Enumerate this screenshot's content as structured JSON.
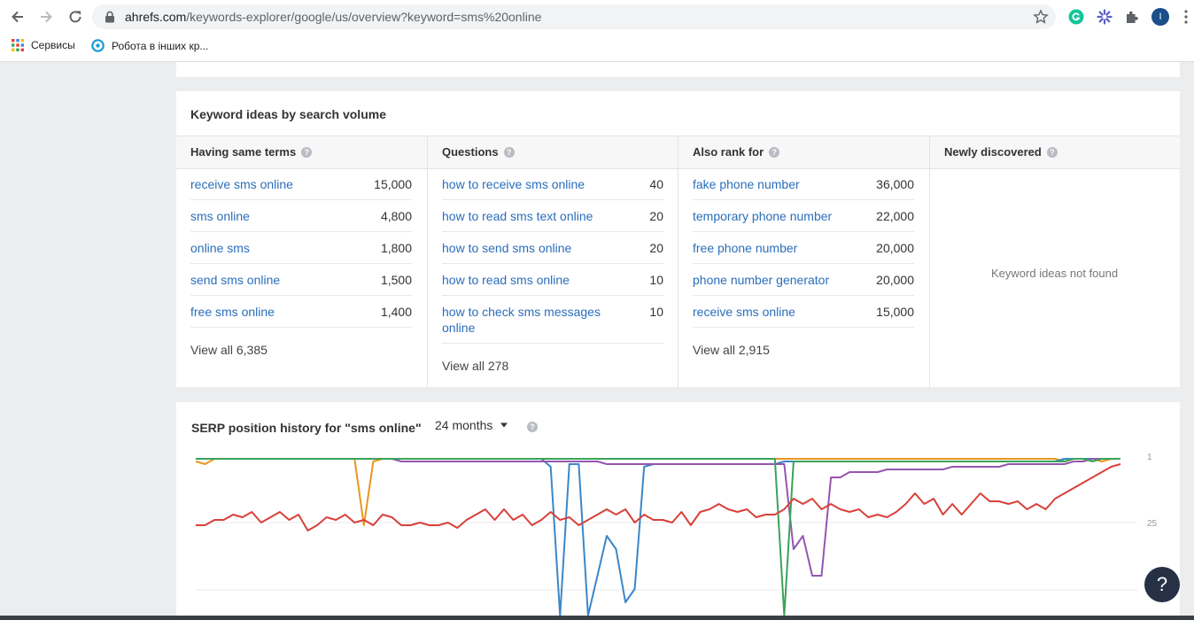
{
  "browser": {
    "url_host": "ahrefs.com",
    "url_path": "/keywords-explorer/google/us/overview?keyword=sms%20online",
    "profile_initial": "I",
    "bookmarks": [
      {
        "label": "Сервисы",
        "icon": "apps-grid-icon"
      },
      {
        "label": "Робота в інших кр...",
        "icon": "target-icon"
      }
    ]
  },
  "ideas": {
    "title": "Keyword ideas by search volume",
    "columns": [
      {
        "header": "Having same terms",
        "rows": [
          {
            "keyword": "receive sms online",
            "volume": "15,000"
          },
          {
            "keyword": "sms online",
            "volume": "4,800"
          },
          {
            "keyword": "online sms",
            "volume": "1,800"
          },
          {
            "keyword": "send sms online",
            "volume": "1,500"
          },
          {
            "keyword": "free sms online",
            "volume": "1,400"
          }
        ],
        "view_all": "View all 6,385"
      },
      {
        "header": "Questions",
        "rows": [
          {
            "keyword": "how to receive sms online",
            "volume": "40"
          },
          {
            "keyword": "how to read sms text online",
            "volume": "20"
          },
          {
            "keyword": "how to send sms online",
            "volume": "20"
          },
          {
            "keyword": "how to read sms online",
            "volume": "10"
          },
          {
            "keyword": "how to check sms messages online",
            "volume": "10"
          }
        ],
        "view_all": "View all 278"
      },
      {
        "header": "Also rank for",
        "rows": [
          {
            "keyword": "fake phone number",
            "volume": "36,000"
          },
          {
            "keyword": "temporary phone number",
            "volume": "22,000"
          },
          {
            "keyword": "free phone number",
            "volume": "20,000"
          },
          {
            "keyword": "phone number generator",
            "volume": "20,000"
          },
          {
            "keyword": "receive sms online",
            "volume": "15,000"
          }
        ],
        "view_all": "View all 2,915"
      },
      {
        "header": "Newly discovered",
        "rows": [],
        "empty_text": "Keyword ideas not found"
      }
    ]
  },
  "serp": {
    "title": "SERP position history for \"sms online\"",
    "period": "24 months",
    "help_fab": "?"
  },
  "chart_data": {
    "type": "line",
    "title": "SERP position history for \"sms online\"",
    "y_axis": {
      "ticks": [
        "1",
        "25"
      ],
      "inverted": true,
      "range_visible": [
        1,
        50
      ]
    },
    "x_range_points": 100,
    "series": [
      {
        "name": "orange",
        "color": "#e8961e",
        "values": [
          2,
          3,
          1,
          1,
          1,
          1,
          1,
          1,
          1,
          1,
          1,
          1,
          1,
          1,
          1,
          1,
          1,
          1,
          26,
          2,
          1,
          1,
          1,
          1,
          1,
          1,
          1,
          1,
          1,
          1,
          1,
          1,
          1,
          1,
          1,
          1,
          1,
          1,
          1,
          1,
          1,
          1,
          1,
          1,
          1,
          1,
          1,
          1,
          1,
          1,
          1,
          1,
          1,
          1,
          1,
          1,
          1,
          1,
          1,
          1,
          1,
          1,
          1,
          1,
          1,
          1,
          1,
          1,
          1,
          1,
          1,
          1,
          1,
          1,
          1,
          1,
          1,
          1,
          1,
          1,
          1,
          1,
          1,
          1,
          1,
          1,
          1,
          1,
          1,
          1,
          1,
          1,
          1,
          2,
          1,
          1,
          1,
          2,
          1,
          1
        ]
      },
      {
        "name": "blue",
        "color": "#3a87c8",
        "values": [
          1,
          1,
          1,
          1,
          1,
          1,
          1,
          1,
          1,
          1,
          1,
          1,
          1,
          1,
          1,
          1,
          1,
          1,
          1,
          1,
          1,
          1,
          1,
          1,
          1,
          1,
          1,
          1,
          1,
          1,
          1,
          1,
          1,
          1,
          1,
          1,
          1,
          1,
          4,
          60,
          3,
          3,
          60,
          45,
          30,
          35,
          55,
          50,
          4,
          3,
          3,
          3,
          3,
          3,
          3,
          3,
          3,
          3,
          3,
          3,
          3,
          3,
          3,
          2,
          2,
          2,
          2,
          2,
          2,
          2,
          2,
          2,
          2,
          2,
          2,
          2,
          2,
          2,
          2,
          2,
          2,
          2,
          2,
          2,
          2,
          2,
          2,
          2,
          2,
          2,
          2,
          2,
          2,
          1,
          1,
          1,
          1,
          1,
          1,
          1
        ]
      },
      {
        "name": "purple",
        "color": "#9456b0",
        "values": [
          1,
          1,
          1,
          1,
          1,
          1,
          1,
          1,
          1,
          1,
          1,
          1,
          1,
          1,
          1,
          1,
          1,
          1,
          1,
          1,
          1,
          1,
          2,
          2,
          2,
          2,
          2,
          2,
          2,
          2,
          2,
          2,
          2,
          2,
          2,
          2,
          2,
          2,
          2,
          2,
          2,
          2,
          2,
          2,
          3,
          3,
          3,
          3,
          3,
          3,
          3,
          3,
          3,
          3,
          3,
          3,
          3,
          3,
          3,
          3,
          3,
          3,
          3,
          3,
          35,
          30,
          45,
          45,
          8,
          8,
          6,
          6,
          6,
          6,
          5,
          5,
          5,
          5,
          5,
          5,
          5,
          4,
          4,
          4,
          4,
          4,
          4,
          3,
          3,
          3,
          3,
          3,
          3,
          3,
          2,
          2,
          1,
          1,
          1,
          1
        ]
      },
      {
        "name": "green",
        "color": "#3aa35a",
        "values": [
          1,
          1,
          1,
          1,
          1,
          1,
          1,
          1,
          1,
          1,
          1,
          1,
          1,
          1,
          1,
          1,
          1,
          1,
          1,
          1,
          1,
          1,
          1,
          1,
          1,
          1,
          1,
          1,
          1,
          1,
          1,
          1,
          1,
          1,
          1,
          1,
          1,
          1,
          1,
          1,
          1,
          1,
          1,
          1,
          1,
          1,
          1,
          1,
          1,
          1,
          1,
          1,
          1,
          1,
          1,
          1,
          1,
          1,
          1,
          1,
          1,
          1,
          1,
          60,
          2,
          2,
          2,
          2,
          2,
          2,
          2,
          2,
          2,
          2,
          2,
          2,
          2,
          2,
          2,
          2,
          2,
          2,
          2,
          2,
          2,
          2,
          2,
          2,
          2,
          2,
          2,
          2,
          2,
          2,
          1,
          1,
          2,
          1,
          1,
          1
        ]
      },
      {
        "name": "red",
        "color": "#d9403a",
        "values": [
          26,
          26,
          24,
          24,
          22,
          23,
          21,
          25,
          23,
          21,
          24,
          22,
          28,
          26,
          23,
          24,
          22,
          25,
          24,
          26,
          22,
          23,
          26,
          26,
          25,
          26,
          26,
          25,
          27,
          24,
          22,
          20,
          24,
          20,
          24,
          22,
          26,
          24,
          21,
          24,
          23,
          26,
          24,
          22,
          20,
          22,
          20,
          25,
          22,
          24,
          24,
          25,
          21,
          26,
          21,
          20,
          18,
          20,
          21,
          20,
          23,
          22,
          22,
          20,
          16,
          18,
          16,
          20,
          18,
          20,
          21,
          20,
          23,
          22,
          23,
          21,
          18,
          14,
          18,
          16,
          22,
          18,
          22,
          18,
          14,
          17,
          17,
          18,
          17,
          20,
          18,
          20,
          16,
          14,
          12,
          10,
          8,
          6,
          4,
          3
        ]
      }
    ]
  }
}
